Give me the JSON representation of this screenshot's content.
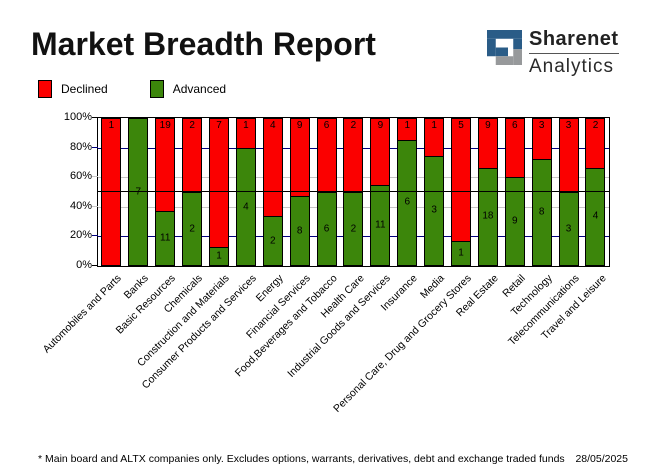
{
  "title": "Market Breadth Report",
  "logo": {
    "line1": "Sharenet",
    "line2": "Analytics",
    "blue": "#2A5C87",
    "gray": "#97999B"
  },
  "legend": {
    "items": [
      {
        "label": "Declined",
        "color": "#FB0000"
      },
      {
        "label": "Advanced",
        "color": "#3C860B"
      }
    ]
  },
  "footer": {
    "note": "* Main board and ALTX companies only. Excludes options, warrants, derivatives, debt and exchange traded funds",
    "date": "28/05/2025"
  },
  "chart_data": {
    "type": "bar",
    "stacked": true,
    "value_mode": "percent_of_category_total",
    "categories": [
      "Automobiles and Parts",
      "Banks",
      "Basic Resources",
      "Chemicals",
      "Construction and Materials",
      "Consumer Products and Services",
      "Energy",
      "Financial Services",
      "Food,Beverages and Tobacco",
      "Health Care",
      "Industrial Goods and Services",
      "Insurance",
      "Media",
      "Personal Care, Drug and Grocery Stores",
      "Real Estate",
      "Retail",
      "Technology",
      "Telecommunications",
      "Travel and Leisure"
    ],
    "series": [
      {
        "name": "Declined",
        "color": "#FB0000",
        "values": [
          1,
          0,
          19,
          2,
          7,
          1,
          4,
          9,
          6,
          2,
          9,
          1,
          1,
          5,
          9,
          6,
          3,
          3,
          2
        ]
      },
      {
        "name": "Advanced",
        "color": "#3C860B",
        "values": [
          0,
          7,
          11,
          2,
          1,
          4,
          2,
          8,
          6,
          2,
          11,
          6,
          3,
          1,
          18,
          9,
          8,
          3,
          4
        ]
      }
    ],
    "ylim": [
      0,
      100
    ],
    "y_ticks": [
      {
        "value": 100,
        "label": "100%",
        "color": "#000000"
      },
      {
        "value": 80,
        "label": "80%",
        "color": "#000080"
      },
      {
        "value": 60,
        "label": "60%",
        "color": "#C6C6C6"
      },
      {
        "value": 40,
        "label": "40%",
        "color": "#C6C6C6"
      },
      {
        "value": 20,
        "label": "20%",
        "color": "#000080"
      },
      {
        "value": 0,
        "label": "0%",
        "color": "#000000"
      }
    ],
    "gridlines": [
      {
        "value": 80,
        "color": "#000080"
      },
      {
        "value": 60,
        "color": "#C6C6C6"
      },
      {
        "value": 40,
        "color": "#C6C6C6"
      },
      {
        "value": 20,
        "color": "#000080"
      }
    ],
    "midline": {
      "value": 50,
      "color": "#000000"
    },
    "grid": true,
    "legend_position": "top-left"
  }
}
